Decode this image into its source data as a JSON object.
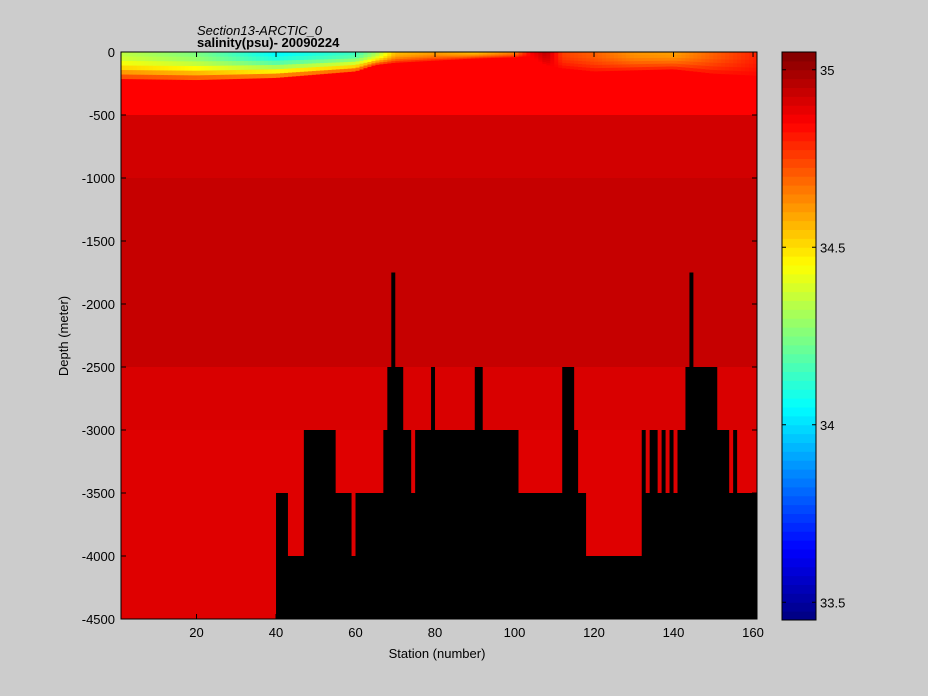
{
  "chart_data": {
    "type": "heatmap",
    "title_line1": "Section13-ARCTIC_0",
    "title_line2": "salinity(psu)- 20090224",
    "xlabel": "Station (number)",
    "ylabel": "Depth (meter)",
    "xlim": [
      1,
      161
    ],
    "ylim": [
      -4500,
      0
    ],
    "x_ticks": [
      20,
      40,
      60,
      80,
      100,
      120,
      140,
      160
    ],
    "y_ticks": [
      0,
      -500,
      -1000,
      -1500,
      -2000,
      -2500,
      -3000,
      -3500,
      -4000,
      -4500
    ],
    "colorbar": {
      "range": [
        33.45,
        35.05
      ],
      "ticks": [
        33.5,
        34,
        34.5,
        35
      ],
      "colormap": "jet"
    },
    "depth_layers": [
      {
        "top": 0,
        "bottom": -500,
        "salinity": 34.85
      },
      {
        "top": -500,
        "bottom": -1000,
        "salinity": 34.92
      },
      {
        "top": -1000,
        "bottom": -2500,
        "salinity": 34.94
      },
      {
        "top": -2500,
        "bottom": -3000,
        "salinity": 34.91
      },
      {
        "top": -3000,
        "bottom": -4500,
        "salinity": 34.9
      }
    ],
    "surface_layer": {
      "depth_min": 0,
      "depth_max": -350,
      "stations": [
        1,
        20,
        40,
        60,
        65,
        70,
        80,
        90,
        100,
        104,
        108,
        112,
        120,
        130,
        140,
        150,
        161
      ],
      "mixed_depth": [
        -250,
        -260,
        -240,
        -180,
        -120,
        -100,
        -80,
        -60,
        -50,
        -40,
        -120,
        -150,
        -180,
        -170,
        -160,
        -200,
        -220
      ],
      "surface_salinity": [
        34.35,
        34.25,
        34.05,
        34.15,
        34.3,
        34.55,
        34.6,
        34.55,
        34.65,
        34.85,
        34.95,
        34.75,
        34.7,
        34.62,
        34.6,
        34.7,
        34.8
      ]
    },
    "bottom_depth_by_station": [
      [
        1,
        -4500
      ],
      [
        39,
        -4500
      ],
      [
        40,
        -3500
      ],
      [
        42,
        -3500
      ],
      [
        43,
        -4000
      ],
      [
        46,
        -4000
      ],
      [
        47,
        -3000
      ],
      [
        54,
        -3000
      ],
      [
        55,
        -3500
      ],
      [
        58,
        -3500
      ],
      [
        59,
        -4000
      ],
      [
        60,
        -3500
      ],
      [
        66,
        -3500
      ],
      [
        67,
        -3000
      ],
      [
        68,
        -2500
      ],
      [
        69,
        -1750
      ],
      [
        70,
        -2500
      ],
      [
        72,
        -3000
      ],
      [
        73,
        -3000
      ],
      [
        74,
        -3500
      ],
      [
        75,
        -3000
      ],
      [
        78,
        -3000
      ],
      [
        79,
        -2500
      ],
      [
        80,
        -3000
      ],
      [
        89,
        -3000
      ],
      [
        90,
        -2500
      ],
      [
        92,
        -3000
      ],
      [
        100,
        -3000
      ],
      [
        101,
        -3500
      ],
      [
        111,
        -3500
      ],
      [
        112,
        -2500
      ],
      [
        115,
        -3000
      ],
      [
        116,
        -3500
      ],
      [
        118,
        -4000
      ],
      [
        131,
        -4000
      ],
      [
        132,
        -3000
      ],
      [
        133,
        -3500
      ],
      [
        134,
        -3000
      ],
      [
        136,
        -3500
      ],
      [
        137,
        -3000
      ],
      [
        138,
        -3500
      ],
      [
        139,
        -3000
      ],
      [
        140,
        -3500
      ],
      [
        141,
        -3000
      ],
      [
        143,
        -2500
      ],
      [
        144,
        -1750
      ],
      [
        145,
        -2500
      ],
      [
        151,
        -3000
      ],
      [
        154,
        -3500
      ],
      [
        155,
        -3000
      ],
      [
        156,
        -3500
      ],
      [
        161,
        -3500
      ]
    ]
  }
}
